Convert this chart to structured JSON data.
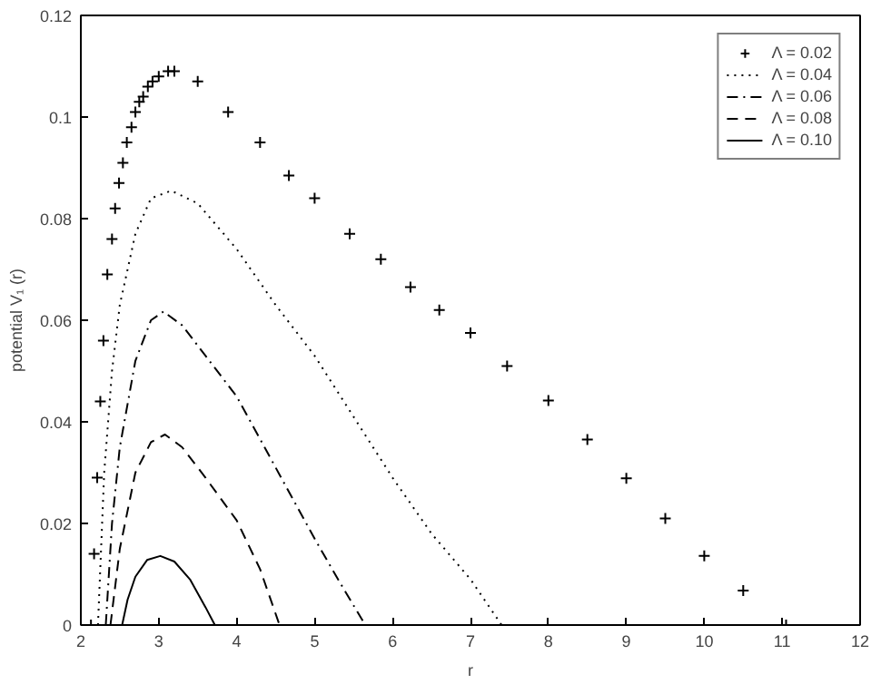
{
  "chart_data": {
    "type": "line",
    "xlabel": "r",
    "ylabel": "potential V₁ (r)",
    "xlim": [
      2,
      12
    ],
    "ylim": [
      0,
      0.12
    ],
    "xticks": [
      2,
      3,
      4,
      5,
      6,
      7,
      8,
      9,
      10,
      11,
      12
    ],
    "yticks": [
      0,
      0.02,
      0.04,
      0.06,
      0.08,
      0.1,
      0.12
    ],
    "grid": false,
    "legend": "top right",
    "series": [
      {
        "name": "Λ = 0.02",
        "type": "scatter",
        "marker": "cross",
        "color": "#000000",
        "x": [
          2.13,
          2.17,
          2.21,
          2.25,
          2.29,
          2.34,
          2.4,
          2.44,
          2.49,
          2.54,
          2.59,
          2.65,
          2.7,
          2.75,
          2.8,
          2.86,
          2.92,
          3.0,
          3.12,
          3.2,
          3.5,
          3.89,
          4.3,
          4.67,
          5.0,
          5.45,
          5.85,
          6.23,
          6.6,
          7.0,
          7.47,
          8.0,
          8.5,
          9.0,
          9.5,
          10.0,
          10.5,
          11.05
        ],
        "values": [
          0.0,
          0.014,
          0.029,
          0.044,
          0.056,
          0.069,
          0.076,
          0.082,
          0.087,
          0.091,
          0.095,
          0.098,
          0.101,
          0.103,
          0.104,
          0.106,
          0.107,
          0.108,
          0.109,
          0.109,
          0.107,
          0.101,
          0.095,
          0.0885,
          0.084,
          0.077,
          0.072,
          0.0665,
          0.062,
          0.0575,
          0.051,
          0.0442,
          0.0365,
          0.0289,
          0.021,
          0.0136,
          0.0068,
          0.0
        ]
      },
      {
        "name": "Λ = 0.04",
        "line_style": "dotted",
        "color": "#000000",
        "x": [
          2.22,
          2.3,
          2.4,
          2.5,
          2.7,
          2.9,
          3.16,
          3.5,
          4.0,
          4.5,
          5.0,
          5.5,
          6.0,
          6.5,
          7.0,
          7.4
        ],
        "values": [
          0.0,
          0.03,
          0.05,
          0.063,
          0.077,
          0.084,
          0.0855,
          0.083,
          0.074,
          0.063,
          0.053,
          0.041,
          0.029,
          0.018,
          0.009,
          0.0
        ]
      },
      {
        "name": "Λ = 0.06",
        "line_style": "dashdot",
        "color": "#000000",
        "x": [
          2.32,
          2.4,
          2.5,
          2.7,
          2.9,
          3.06,
          3.3,
          3.6,
          4.0,
          4.5,
          5.0,
          5.3,
          5.65
        ],
        "values": [
          0.0,
          0.02,
          0.035,
          0.052,
          0.06,
          0.0617,
          0.059,
          0.053,
          0.045,
          0.031,
          0.017,
          0.009,
          0.0
        ]
      },
      {
        "name": "Λ = 0.08",
        "line_style": "dashed",
        "color": "#000000",
        "x": [
          2.38,
          2.5,
          2.7,
          2.9,
          3.08,
          3.3,
          3.6,
          4.0,
          4.3,
          4.55
        ],
        "values": [
          0.0,
          0.015,
          0.03,
          0.036,
          0.0375,
          0.035,
          0.029,
          0.0206,
          0.011,
          0.0
        ]
      },
      {
        "name": "Λ = 0.10",
        "line_style": "solid",
        "color": "#000000",
        "x": [
          2.53,
          2.6,
          2.7,
          2.85,
          3.02,
          3.2,
          3.4,
          3.6,
          3.72
        ],
        "values": [
          0.0,
          0.005,
          0.0095,
          0.0128,
          0.0136,
          0.0125,
          0.009,
          0.0035,
          0.0
        ]
      }
    ]
  }
}
